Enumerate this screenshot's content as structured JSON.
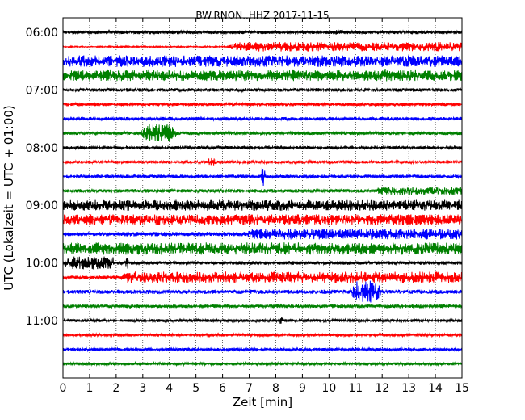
{
  "chart_data": {
    "type": "line",
    "title": "BW.RNON..HHZ 2017-11-15",
    "xlabel": "Zeit  [min]",
    "ylabel": "UTC (Lokalzeit = UTC + 01:00)",
    "xlim": [
      0,
      15
    ],
    "x_ticks": [
      "0",
      "1",
      "2",
      "3",
      "4",
      "5",
      "6",
      "7",
      "8",
      "9",
      "10",
      "11",
      "12",
      "13",
      "14",
      "15"
    ],
    "y_tick_labels": [
      "06:00",
      "07:00",
      "08:00",
      "09:00",
      "10:00",
      "11:00"
    ],
    "start_time": "06:00",
    "row_interval_min": 15,
    "grid": "vertical dotted lines at each minute",
    "color_cycle": [
      "#000000",
      "#ff0000",
      "#0000ff",
      "#008000"
    ],
    "series": [
      {
        "time": "06:00",
        "color": "black",
        "amp_base": 0.25,
        "events": [
          {
            "start_min": 10.2,
            "end_min": 10.5,
            "amp": 0.45
          }
        ]
      },
      {
        "time": "06:15",
        "color": "red",
        "amp_base": 0.1,
        "events": [
          {
            "start_min": 6.1,
            "end_min": 15,
            "amp": 0.65
          }
        ]
      },
      {
        "time": "06:30",
        "color": "blue",
        "amp_base": 0.8,
        "events": []
      },
      {
        "time": "06:45",
        "color": "green",
        "amp_base": 0.75,
        "events": [
          {
            "start_min": 12.0,
            "end_min": 12.2,
            "amp": 1.0
          }
        ]
      },
      {
        "time": "07:00",
        "color": "black",
        "amp_base": 0.25,
        "events": []
      },
      {
        "time": "07:15",
        "color": "red",
        "amp_base": 0.25,
        "events": []
      },
      {
        "time": "07:30",
        "color": "blue",
        "amp_base": 0.25,
        "events": []
      },
      {
        "time": "07:45",
        "color": "green",
        "amp_base": 0.25,
        "events": [
          {
            "start_min": 2.9,
            "end_min": 4.3,
            "amp": 1.3
          }
        ]
      },
      {
        "time": "08:00",
        "color": "black",
        "amp_base": 0.2,
        "events": []
      },
      {
        "time": "08:15",
        "color": "red",
        "amp_base": 0.2,
        "events": [
          {
            "start_min": 5.4,
            "end_min": 5.8,
            "amp": 0.6
          }
        ]
      },
      {
        "time": "08:30",
        "color": "blue",
        "amp_base": 0.25,
        "events": [
          {
            "start_min": 7.45,
            "end_min": 7.6,
            "amp": 1.5
          }
        ]
      },
      {
        "time": "08:45",
        "color": "green",
        "amp_base": 0.25,
        "events": [
          {
            "start_min": 11.7,
            "end_min": 15,
            "amp": 0.6
          }
        ]
      },
      {
        "time": "09:00",
        "color": "black",
        "amp_base": 0.75,
        "events": []
      },
      {
        "time": "09:15",
        "color": "red",
        "amp_base": 0.75,
        "events": []
      },
      {
        "time": "09:30",
        "color": "blue",
        "amp_base": 0.3,
        "events": [
          {
            "start_min": 6.7,
            "end_min": 15,
            "amp": 0.75
          }
        ]
      },
      {
        "time": "09:45",
        "color": "green",
        "amp_base": 0.85,
        "events": []
      },
      {
        "time": "10:00",
        "color": "black",
        "amp_base": 0.25,
        "events": [
          {
            "start_min": 0,
            "end_min": 1.9,
            "amp": 0.9
          },
          {
            "start_min": 2.3,
            "end_min": 2.5,
            "amp": 0.8
          }
        ]
      },
      {
        "time": "10:15",
        "color": "red",
        "amp_base": 0.25,
        "events": [
          {
            "start_min": 1.8,
            "end_min": 15,
            "amp": 0.8
          }
        ]
      },
      {
        "time": "10:30",
        "color": "blue",
        "amp_base": 0.3,
        "events": [
          {
            "start_min": 10.8,
            "end_min": 12.0,
            "amp": 1.6
          }
        ]
      },
      {
        "time": "10:45",
        "color": "green",
        "amp_base": 0.25,
        "events": []
      },
      {
        "time": "11:00",
        "color": "black",
        "amp_base": 0.2,
        "events": [
          {
            "start_min": 8.1,
            "end_min": 8.3,
            "amp": 0.5
          }
        ]
      },
      {
        "time": "11:15",
        "color": "red",
        "amp_base": 0.2,
        "events": []
      },
      {
        "time": "11:30",
        "color": "blue",
        "amp_base": 0.2,
        "events": []
      },
      {
        "time": "11:45",
        "color": "green",
        "amp_base": 0.2,
        "events": []
      }
    ]
  }
}
